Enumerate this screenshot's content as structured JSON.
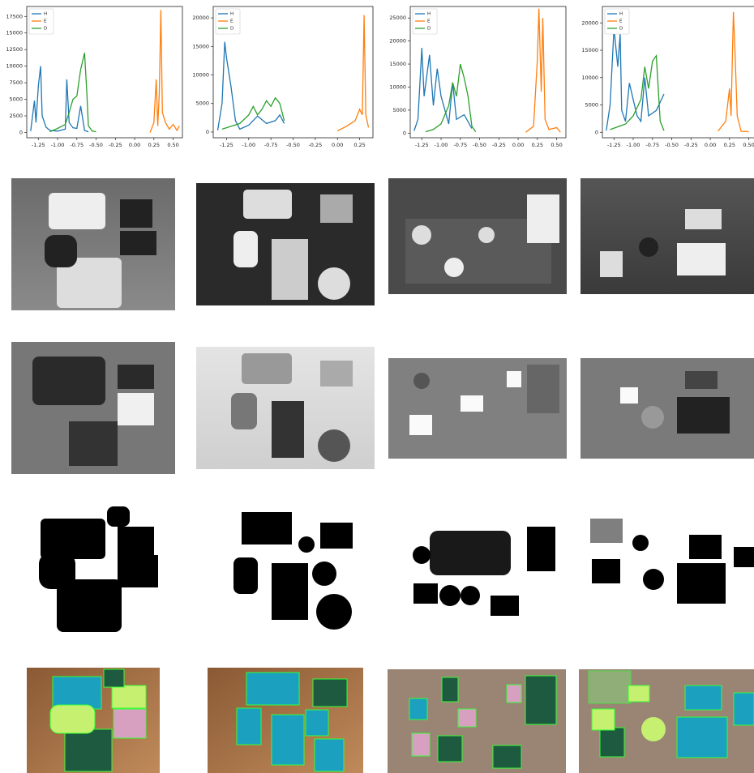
{
  "chart_data": [
    {
      "type": "line",
      "xlim": [
        -1.4,
        0.62
      ],
      "ylim": [
        -800,
        19000
      ],
      "xticks": [
        -1.25,
        {
          "value": -1,
          "label": "-1.00"
        },
        -0.75,
        {
          "value": -0.5,
          "label": "-0.50"
        },
        -0.25,
        {
          "value": 0,
          "label": "0.00"
        },
        0.25,
        {
          "value": 0.5,
          "label": "0.50"
        }
      ],
      "yticks": [
        0,
        2500,
        5000,
        7500,
        10000,
        12500,
        15000,
        17500
      ],
      "legend": "upper left",
      "series": [
        {
          "name": "H",
          "color": "#1f77b4",
          "x": [
            -1.35,
            -1.3,
            -1.28,
            -1.25,
            -1.22,
            -1.2,
            -1.15,
            -1.1,
            -1.0,
            -0.9,
            -0.88,
            -0.85,
            -0.8,
            -0.75,
            -0.7,
            -0.65,
            -0.6
          ],
          "values": [
            200,
            4800,
            1500,
            7000,
            10000,
            2500,
            800,
            300,
            200,
            500,
            8000,
            1500,
            700,
            600,
            4000,
            300,
            100
          ]
        },
        {
          "name": "E",
          "color": "#ff7f0e",
          "x": [
            0.2,
            0.25,
            0.28,
            0.3,
            0.32,
            0.34,
            0.36,
            0.4,
            0.45,
            0.5,
            0.55,
            0.58
          ],
          "values": [
            0,
            1500,
            8000,
            1000,
            6000,
            18500,
            3000,
            1500,
            500,
            1200,
            300,
            1000
          ]
        },
        {
          "name": "D",
          "color": "#2ca02c",
          "x": [
            -1.1,
            -1.0,
            -0.9,
            -0.85,
            -0.8,
            -0.75,
            -0.7,
            -0.65,
            -0.62,
            -0.6,
            -0.55,
            -0.5
          ],
          "values": [
            100,
            600,
            1200,
            3000,
            5000,
            5500,
            9500,
            12000,
            6000,
            1000,
            200,
            100
          ]
        }
      ]
    },
    {
      "type": "line",
      "xlim": [
        -1.4,
        0.4
      ],
      "ylim": [
        -1000,
        22000
      ],
      "xticks": [
        -1.25,
        {
          "value": -1,
          "label": "-1.00"
        },
        -0.75,
        {
          "value": -0.5,
          "label": "-0.50"
        },
        -0.25,
        {
          "value": 0,
          "label": "0.00"
        },
        0.25
      ],
      "yticks": [
        0,
        5000,
        10000,
        15000,
        20000
      ],
      "legend": "upper left",
      "series": [
        {
          "name": "H",
          "color": "#1f77b4",
          "x": [
            -1.35,
            -1.3,
            -1.27,
            -1.25,
            -1.2,
            -1.15,
            -1.1,
            -1.0,
            -0.9,
            -0.8,
            -0.7,
            -0.65,
            -0.6
          ],
          "values": [
            300,
            5000,
            15800,
            13000,
            8000,
            2000,
            500,
            1200,
            2800,
            1500,
            2000,
            3000,
            1500
          ]
        },
        {
          "name": "E",
          "color": "#ff7f0e",
          "x": [
            0.0,
            0.1,
            0.2,
            0.25,
            0.28,
            0.3,
            0.32,
            0.35
          ],
          "values": [
            200,
            1000,
            2000,
            4000,
            3000,
            20500,
            3000,
            800
          ]
        },
        {
          "name": "D",
          "color": "#2ca02c",
          "x": [
            -1.3,
            -1.2,
            -1.1,
            -1.0,
            -0.95,
            -0.9,
            -0.85,
            -0.8,
            -0.75,
            -0.7,
            -0.65,
            -0.6
          ],
          "values": [
            500,
            1000,
            1500,
            3000,
            4500,
            3000,
            4000,
            5500,
            4500,
            6000,
            5000,
            2000
          ]
        }
      ]
    },
    {
      "type": "line",
      "xlim": [
        -1.4,
        0.62
      ],
      "ylim": [
        -1000,
        27500
      ],
      "xticks": [
        -1.25,
        {
          "value": -1,
          "label": "-1.00"
        },
        -0.75,
        {
          "value": -0.5,
          "label": "-0.50"
        },
        -0.25,
        {
          "value": 0,
          "label": "0.00"
        },
        0.25,
        {
          "value": 0.5,
          "label": "0.50"
        }
      ],
      "yticks": [
        0,
        5000,
        10000,
        15000,
        20000,
        25000
      ],
      "legend": "upper left",
      "series": [
        {
          "name": "H",
          "color": "#1f77b4",
          "x": [
            -1.35,
            -1.3,
            -1.25,
            -1.22,
            -1.15,
            -1.1,
            -1.05,
            -1.0,
            -0.95,
            -0.9,
            -0.85,
            -0.8,
            -0.7,
            -0.6
          ],
          "values": [
            500,
            3000,
            18500,
            8000,
            17000,
            6000,
            14000,
            8000,
            5000,
            2000,
            11000,
            3000,
            4000,
            1000
          ]
        },
        {
          "name": "E",
          "color": "#ff7f0e",
          "x": [
            0.1,
            0.2,
            0.25,
            0.27,
            0.3,
            0.32,
            0.35,
            0.4,
            0.5,
            0.55
          ],
          "values": [
            200,
            1500,
            16000,
            27000,
            9000,
            25000,
            3000,
            800,
            1200,
            200
          ]
        },
        {
          "name": "D",
          "color": "#2ca02c",
          "x": [
            -1.2,
            -1.1,
            -1.0,
            -0.9,
            -0.85,
            -0.8,
            -0.75,
            -0.7,
            -0.65,
            -0.6,
            -0.55
          ],
          "values": [
            300,
            800,
            2000,
            6000,
            11000,
            8000,
            15000,
            12000,
            8000,
            1500,
            300
          ]
        }
      ]
    },
    {
      "type": "line",
      "xlim": [
        -1.4,
        0.62
      ],
      "ylim": [
        -1000,
        23000
      ],
      "xticks": [
        -1.25,
        {
          "value": -1,
          "label": "-1.00"
        },
        -0.75,
        {
          "value": -0.5,
          "label": "-0.50"
        },
        -0.25,
        {
          "value": 0,
          "label": "0.00"
        },
        0.25,
        {
          "value": 0.5,
          "label": "0.50"
        }
      ],
      "yticks": [
        0,
        5000,
        10000,
        15000,
        20000
      ],
      "legend": "upper left",
      "series": [
        {
          "name": "H",
          "color": "#1f77b4",
          "x": [
            -1.35,
            -1.3,
            -1.25,
            -1.2,
            -1.17,
            -1.15,
            -1.1,
            -1.05,
            -1.0,
            -0.95,
            -0.9,
            -0.85,
            -0.8,
            -0.7,
            -0.6
          ],
          "values": [
            300,
            5000,
            19000,
            12000,
            18000,
            4000,
            2000,
            9000,
            6000,
            3000,
            2000,
            10000,
            3000,
            4000,
            7000
          ]
        },
        {
          "name": "E",
          "color": "#ff7f0e",
          "x": [
            0.1,
            0.2,
            0.25,
            0.27,
            0.3,
            0.32,
            0.35,
            0.4,
            0.5
          ],
          "values": [
            200,
            2000,
            8000,
            3000,
            22000,
            15000,
            3000,
            200,
            100
          ]
        },
        {
          "name": "D",
          "color": "#2ca02c",
          "x": [
            -1.3,
            -1.2,
            -1.1,
            -1.0,
            -0.9,
            -0.85,
            -0.8,
            -0.75,
            -0.7,
            -0.65,
            -0.6
          ],
          "values": [
            500,
            1000,
            1500,
            3000,
            6000,
            12000,
            8000,
            13000,
            14000,
            2000,
            300
          ]
        }
      ]
    }
  ]
}
